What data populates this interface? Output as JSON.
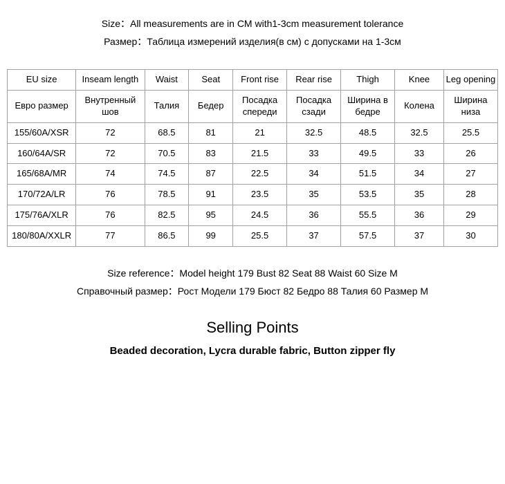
{
  "notes": {
    "size_en": "Size：All measurements are in CM with1-3cm measurement tolerance",
    "size_ru": "Размер：Таблица измерений изделия(в см) с допусками на 1-3см"
  },
  "table": {
    "headers_en": [
      "EU size",
      "Inseam length",
      "Waist",
      "Seat",
      "Front rise",
      "Rear rise",
      "Thigh",
      "Knee",
      "Leg opening"
    ],
    "headers_ru": [
      "Евро размер",
      "Внутренный шов",
      "Талия",
      "Бедер",
      "Посадка спереди",
      "Посадка сзади",
      "Ширина в бедре",
      "Колена",
      "Ширина низа"
    ],
    "rows": [
      [
        "155/60A/XSR",
        "72",
        "68.5",
        "81",
        "21",
        "32.5",
        "48.5",
        "32.5",
        "25.5"
      ],
      [
        "160/64A/SR",
        "72",
        "70.5",
        "83",
        "21.5",
        "33",
        "49.5",
        "33",
        "26"
      ],
      [
        "165/68A/MR",
        "74",
        "74.5",
        "87",
        "22.5",
        "34",
        "51.5",
        "34",
        "27"
      ],
      [
        "170/72A/LR",
        "76",
        "78.5",
        "91",
        "23.5",
        "35",
        "53.5",
        "35",
        "28"
      ],
      [
        "175/76A/XLR",
        "76",
        "82.5",
        "95",
        "24.5",
        "36",
        "55.5",
        "36",
        "29"
      ],
      [
        "180/80A/XXLR",
        "77",
        "86.5",
        "99",
        "25.5",
        "37",
        "57.5",
        "37",
        "30"
      ]
    ]
  },
  "reference": {
    "en": "Size reference：Model  height 179  Bust 82  Seat 88  Waist 60  Size M",
    "ru": "Справочный размер：Рост Модели 179 Бюст 82 Бедро 88 Талия 60 Размер М"
  },
  "selling": {
    "title": "Selling Points",
    "body": "Beaded decoration, Lycra durable fabric, Button zipper fly"
  },
  "style": {
    "background": "#ffffff",
    "text_color": "#000000",
    "border_color": "#a0a0a0",
    "body_fontsize": 14,
    "table_fontsize": 13,
    "selling_title_fontsize": 22,
    "selling_body_fontsize": 15
  }
}
